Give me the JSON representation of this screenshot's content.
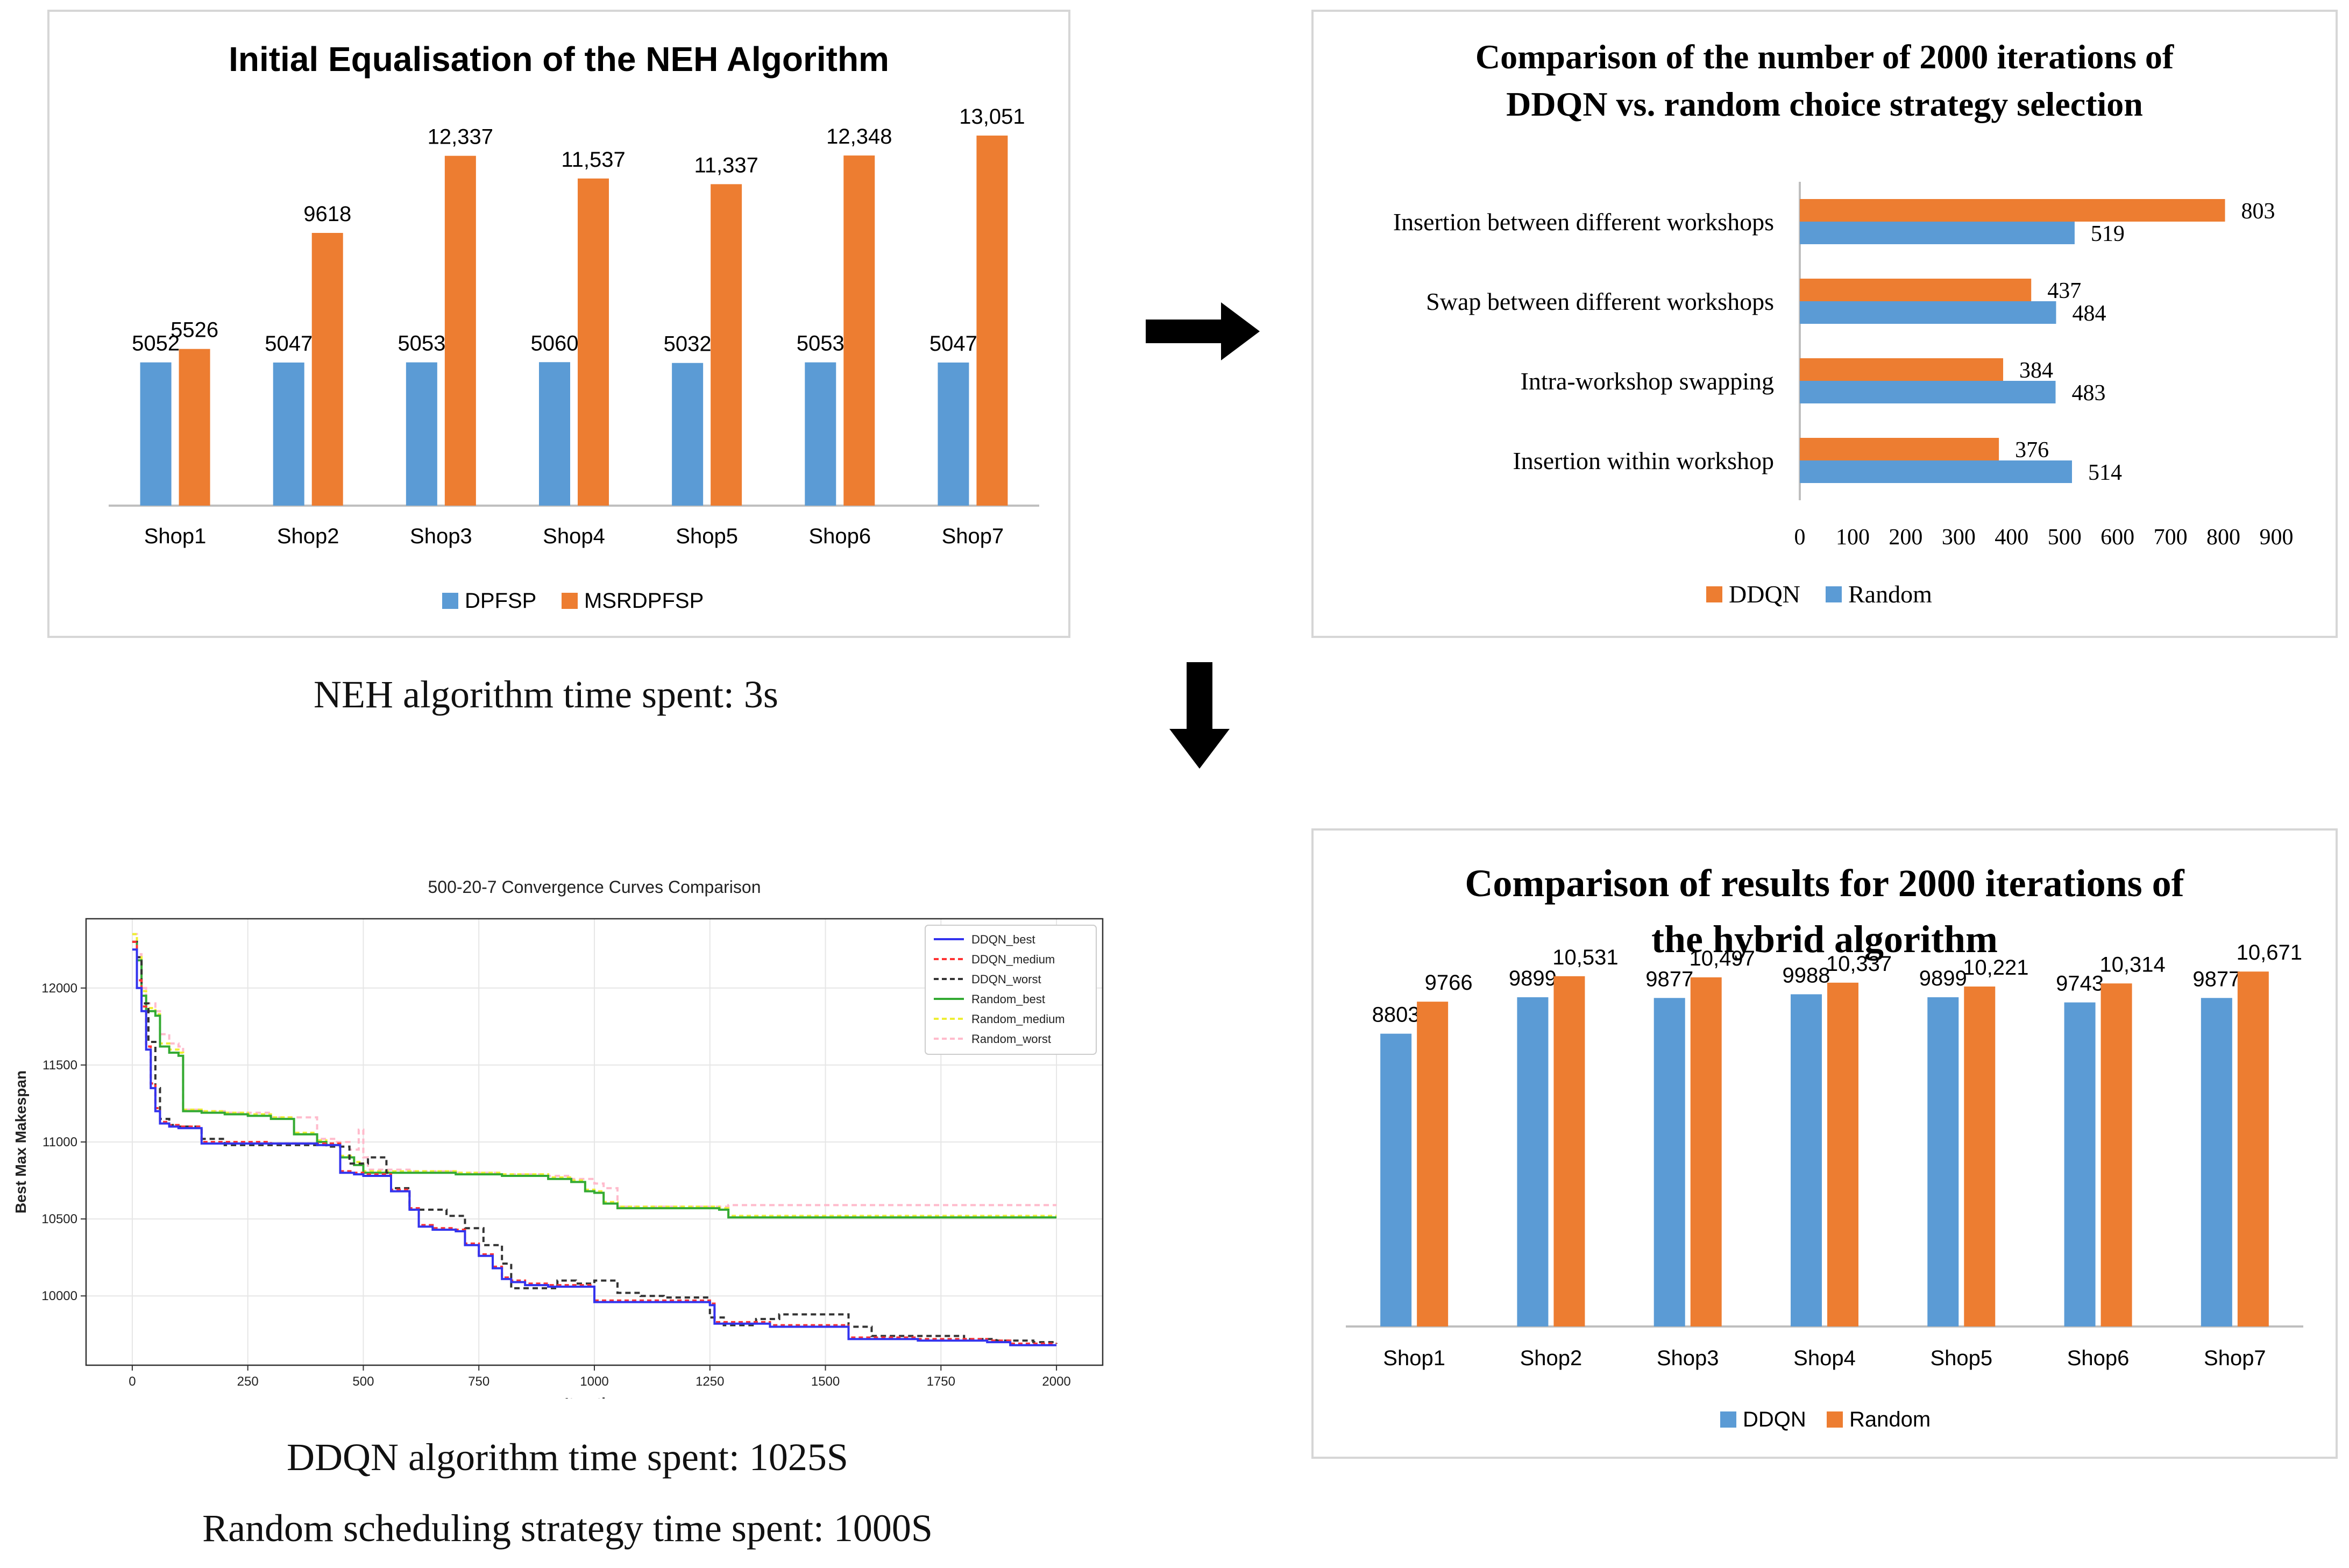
{
  "colors": {
    "blue": "#5B9BD5",
    "orange": "#ED7D31",
    "axis": "#bfbfbf",
    "arrow": "#000000"
  },
  "arrows": {
    "right": "right-arrow-icon",
    "down": "down-arrow-icon"
  },
  "chart_data": [
    {
      "id": "neh",
      "type": "bar",
      "title": "Initial Equalisation of the NEH Algorithm",
      "categories": [
        "Shop1",
        "Shop2",
        "Shop3",
        "Shop4",
        "Shop5",
        "Shop6",
        "Shop7"
      ],
      "series": [
        {
          "name": "DPFSP",
          "values": [
            5052,
            5047,
            5053,
            5060,
            5032,
            5053,
            5047
          ],
          "labels": [
            "5052",
            "5047",
            "5053",
            "5060",
            "5032",
            "5053",
            "5047"
          ]
        },
        {
          "name": "MSRDPFSP",
          "values": [
            5526,
            9618,
            12337,
            11537,
            11337,
            12348,
            13051
          ],
          "labels": [
            "5526",
            "9618",
            "12,337",
            "11,537",
            "11,337",
            "12,348",
            "13,051"
          ]
        }
      ],
      "ylim": [
        0,
        14000
      ],
      "xlabel": "",
      "ylabel": "",
      "legend": "bottom",
      "caption": "NEH algorithm time spent: 3s"
    },
    {
      "id": "strategy",
      "type": "bar",
      "orientation": "horizontal",
      "title_lines": [
        "Comparison of the number of 2000 iterations of",
        "DDQN vs. random choice strategy selection"
      ],
      "categories": [
        "Insertion between different workshops",
        "Swap between different workshops",
        "Intra-workshop swapping",
        "Insertion within workshop"
      ],
      "series": [
        {
          "name": "DDQN",
          "values": [
            803,
            437,
            384,
            376
          ]
        },
        {
          "name": "Random",
          "values": [
            519,
            484,
            483,
            514
          ]
        }
      ],
      "xlim": [
        0,
        900
      ],
      "xticks": [
        "0",
        "100",
        "200",
        "300",
        "400",
        "500",
        "600",
        "700",
        "800",
        "900"
      ],
      "legend": "bottom"
    },
    {
      "id": "convergence",
      "type": "line",
      "title": "500-20-7 Convergence Curves Comparison",
      "xlabel": "Iteration",
      "ylabel": "Best Max Makespan",
      "xlim": [
        -100,
        2100
      ],
      "ylim": [
        9550,
        12450
      ],
      "xticks": [
        "0",
        "250",
        "500",
        "750",
        "1000",
        "1250",
        "1500",
        "1750",
        "2000"
      ],
      "yticks": [
        "10000",
        "10500",
        "11000",
        "11500",
        "12000"
      ],
      "grid": true,
      "legend": "top-right",
      "series": [
        {
          "name": "DDQN_best",
          "color": "#3333ee",
          "dash": "solid",
          "x": [
            0,
            10,
            20,
            30,
            40,
            50,
            60,
            80,
            100,
            150,
            200,
            300,
            400,
            450,
            480,
            500,
            550,
            560,
            600,
            620,
            650,
            700,
            720,
            750,
            780,
            800,
            820,
            850,
            900,
            950,
            1000,
            1050,
            1100,
            1200,
            1250,
            1260,
            1300,
            1380,
            1450,
            1550,
            1600,
            1700,
            1800,
            1850,
            1900,
            2000
          ],
          "y": [
            12250,
            12000,
            11850,
            11600,
            11350,
            11200,
            11120,
            11100,
            11090,
            10990,
            10990,
            10990,
            10980,
            10800,
            10790,
            10780,
            10780,
            10680,
            10560,
            10450,
            10430,
            10420,
            10330,
            10260,
            10180,
            10110,
            10090,
            10070,
            10060,
            10060,
            9960,
            9960,
            9960,
            9960,
            9940,
            9820,
            9820,
            9800,
            9800,
            9720,
            9720,
            9710,
            9710,
            9700,
            9680,
            9680
          ]
        },
        {
          "name": "DDQN_medium",
          "color": "#ff3333",
          "dash": "8,6",
          "x": [
            0,
            10,
            20,
            30,
            40,
            50,
            60,
            80,
            100,
            150,
            200,
            300,
            400,
            450,
            480,
            500,
            550,
            560,
            600,
            620,
            650,
            700,
            720,
            750,
            780,
            800,
            820,
            850,
            900,
            950,
            1000,
            1050,
            1100,
            1200,
            1250,
            1260,
            1300,
            1380,
            1450,
            1550,
            1600,
            1700,
            1800,
            1850,
            1900,
            2000
          ],
          "y": [
            12300,
            12050,
            11880,
            11620,
            11380,
            11220,
            11130,
            11110,
            11100,
            11000,
            11000,
            10990,
            10990,
            10810,
            10800,
            10790,
            10790,
            10690,
            10570,
            10460,
            10440,
            10430,
            10340,
            10270,
            10190,
            10120,
            10100,
            10080,
            10070,
            10070,
            9970,
            9970,
            9970,
            9970,
            9950,
            9830,
            9830,
            9810,
            9810,
            9730,
            9730,
            9720,
            9720,
            9710,
            9690,
            9690
          ]
        },
        {
          "name": "DDQN_worst",
          "color": "#333333",
          "dash": "10,7",
          "x": [
            0,
            10,
            20,
            35,
            50,
            60,
            80,
            100,
            150,
            200,
            300,
            420,
            470,
            510,
            550,
            560,
            600,
            640,
            680,
            720,
            760,
            800,
            820,
            860,
            920,
            960,
            1000,
            1050,
            1100,
            1150,
            1200,
            1250,
            1280,
            1350,
            1400,
            1450,
            1500,
            1550,
            1600,
            1700,
            1800,
            1870,
            1950,
            2000
          ],
          "y": [
            12300,
            12200,
            11900,
            11650,
            11350,
            11150,
            11110,
            11100,
            11020,
            10980,
            10980,
            10970,
            10860,
            10900,
            10800,
            10700,
            10560,
            10560,
            10520,
            10440,
            10330,
            10210,
            10050,
            10050,
            10100,
            10080,
            10100,
            10020,
            10000,
            9990,
            9990,
            9860,
            9810,
            9850,
            9880,
            9880,
            9880,
            9800,
            9740,
            9740,
            9720,
            9710,
            9700,
            9690
          ]
        },
        {
          "name": "Random_best",
          "color": "#33aa33",
          "dash": "solid",
          "x": [
            0,
            10,
            20,
            30,
            50,
            60,
            80,
            100,
            110,
            150,
            200,
            250,
            300,
            350,
            400,
            420,
            450,
            480,
            500,
            600,
            700,
            800,
            900,
            950,
            980,
            1000,
            1020,
            1050,
            1200,
            1250,
            1270,
            1290,
            1500,
            1800,
            2000
          ],
          "y": [
            12300,
            12180,
            11950,
            11850,
            11820,
            11620,
            11580,
            11560,
            11200,
            11190,
            11180,
            11170,
            11150,
            11050,
            11000,
            10980,
            10900,
            10850,
            10800,
            10800,
            10790,
            10780,
            10760,
            10740,
            10680,
            10670,
            10600,
            10570,
            10570,
            10570,
            10560,
            10510,
            10510,
            10510,
            10510
          ]
        },
        {
          "name": "Random_medium",
          "color": "#eeee33",
          "dash": "8,6",
          "x": [
            0,
            10,
            20,
            30,
            50,
            60,
            80,
            100,
            110,
            150,
            200,
            250,
            300,
            350,
            400,
            420,
            450,
            480,
            500,
            600,
            700,
            800,
            900,
            950,
            980,
            1000,
            1020,
            1050,
            1200,
            1250,
            1270,
            1290,
            1500,
            1800,
            2000
          ],
          "y": [
            12350,
            12200,
            11980,
            11870,
            11830,
            11640,
            11600,
            11580,
            11210,
            11200,
            11190,
            11180,
            11160,
            11060,
            11010,
            10990,
            10910,
            10870,
            10810,
            10810,
            10800,
            10790,
            10770,
            10750,
            10690,
            10680,
            10610,
            10580,
            10580,
            10580,
            10570,
            10520,
            10520,
            10520,
            10520
          ]
        },
        {
          "name": "Random_worst",
          "color": "#ffbbcc",
          "dash": "10,7",
          "x": [
            0,
            10,
            20,
            30,
            50,
            60,
            80,
            100,
            110,
            150,
            200,
            300,
            400,
            440,
            470,
            490,
            500,
            510,
            600,
            700,
            800,
            900,
            950,
            1000,
            1020,
            1050,
            1200,
            1280,
            1290,
            1500,
            1800,
            2000
          ],
          "y": [
            12350,
            12220,
            12000,
            11900,
            11850,
            11700,
            11640,
            11620,
            11210,
            11200,
            11190,
            11160,
            11020,
            11000,
            10950,
            11080,
            10900,
            10820,
            10810,
            10800,
            10790,
            10780,
            10760,
            10730,
            10700,
            10580,
            10580,
            10580,
            10590,
            10590,
            10590,
            10590
          ]
        }
      ],
      "captions": [
        "DDQN algorithm time spent: 1025S",
        "Random scheduling strategy time spent: 1000S"
      ]
    },
    {
      "id": "hybrid",
      "type": "bar",
      "title_lines": [
        "Comparison of results for 2000 iterations of",
        "the hybrid algorithm"
      ],
      "categories": [
        "Shop1",
        "Shop2",
        "Shop3",
        "Shop4",
        "Shop5",
        "Shop6",
        "Shop7"
      ],
      "series": [
        {
          "name": "DDQN",
          "values": [
            8803,
            9899,
            9877,
            9988,
            9899,
            9743,
            9877
          ],
          "labels": [
            "8803",
            "9899",
            "9877",
            "9988",
            "9899",
            "9743",
            "9877"
          ]
        },
        {
          "name": "Random",
          "values": [
            9766,
            10531,
            10497,
            10337,
            10221,
            10314,
            10671
          ],
          "labels": [
            "9766",
            "10,531",
            "10,497",
            "10,337",
            "10,221",
            "10,314",
            "10,671"
          ]
        }
      ],
      "ylim": [
        0,
        12000
      ],
      "legend": "bottom"
    }
  ]
}
